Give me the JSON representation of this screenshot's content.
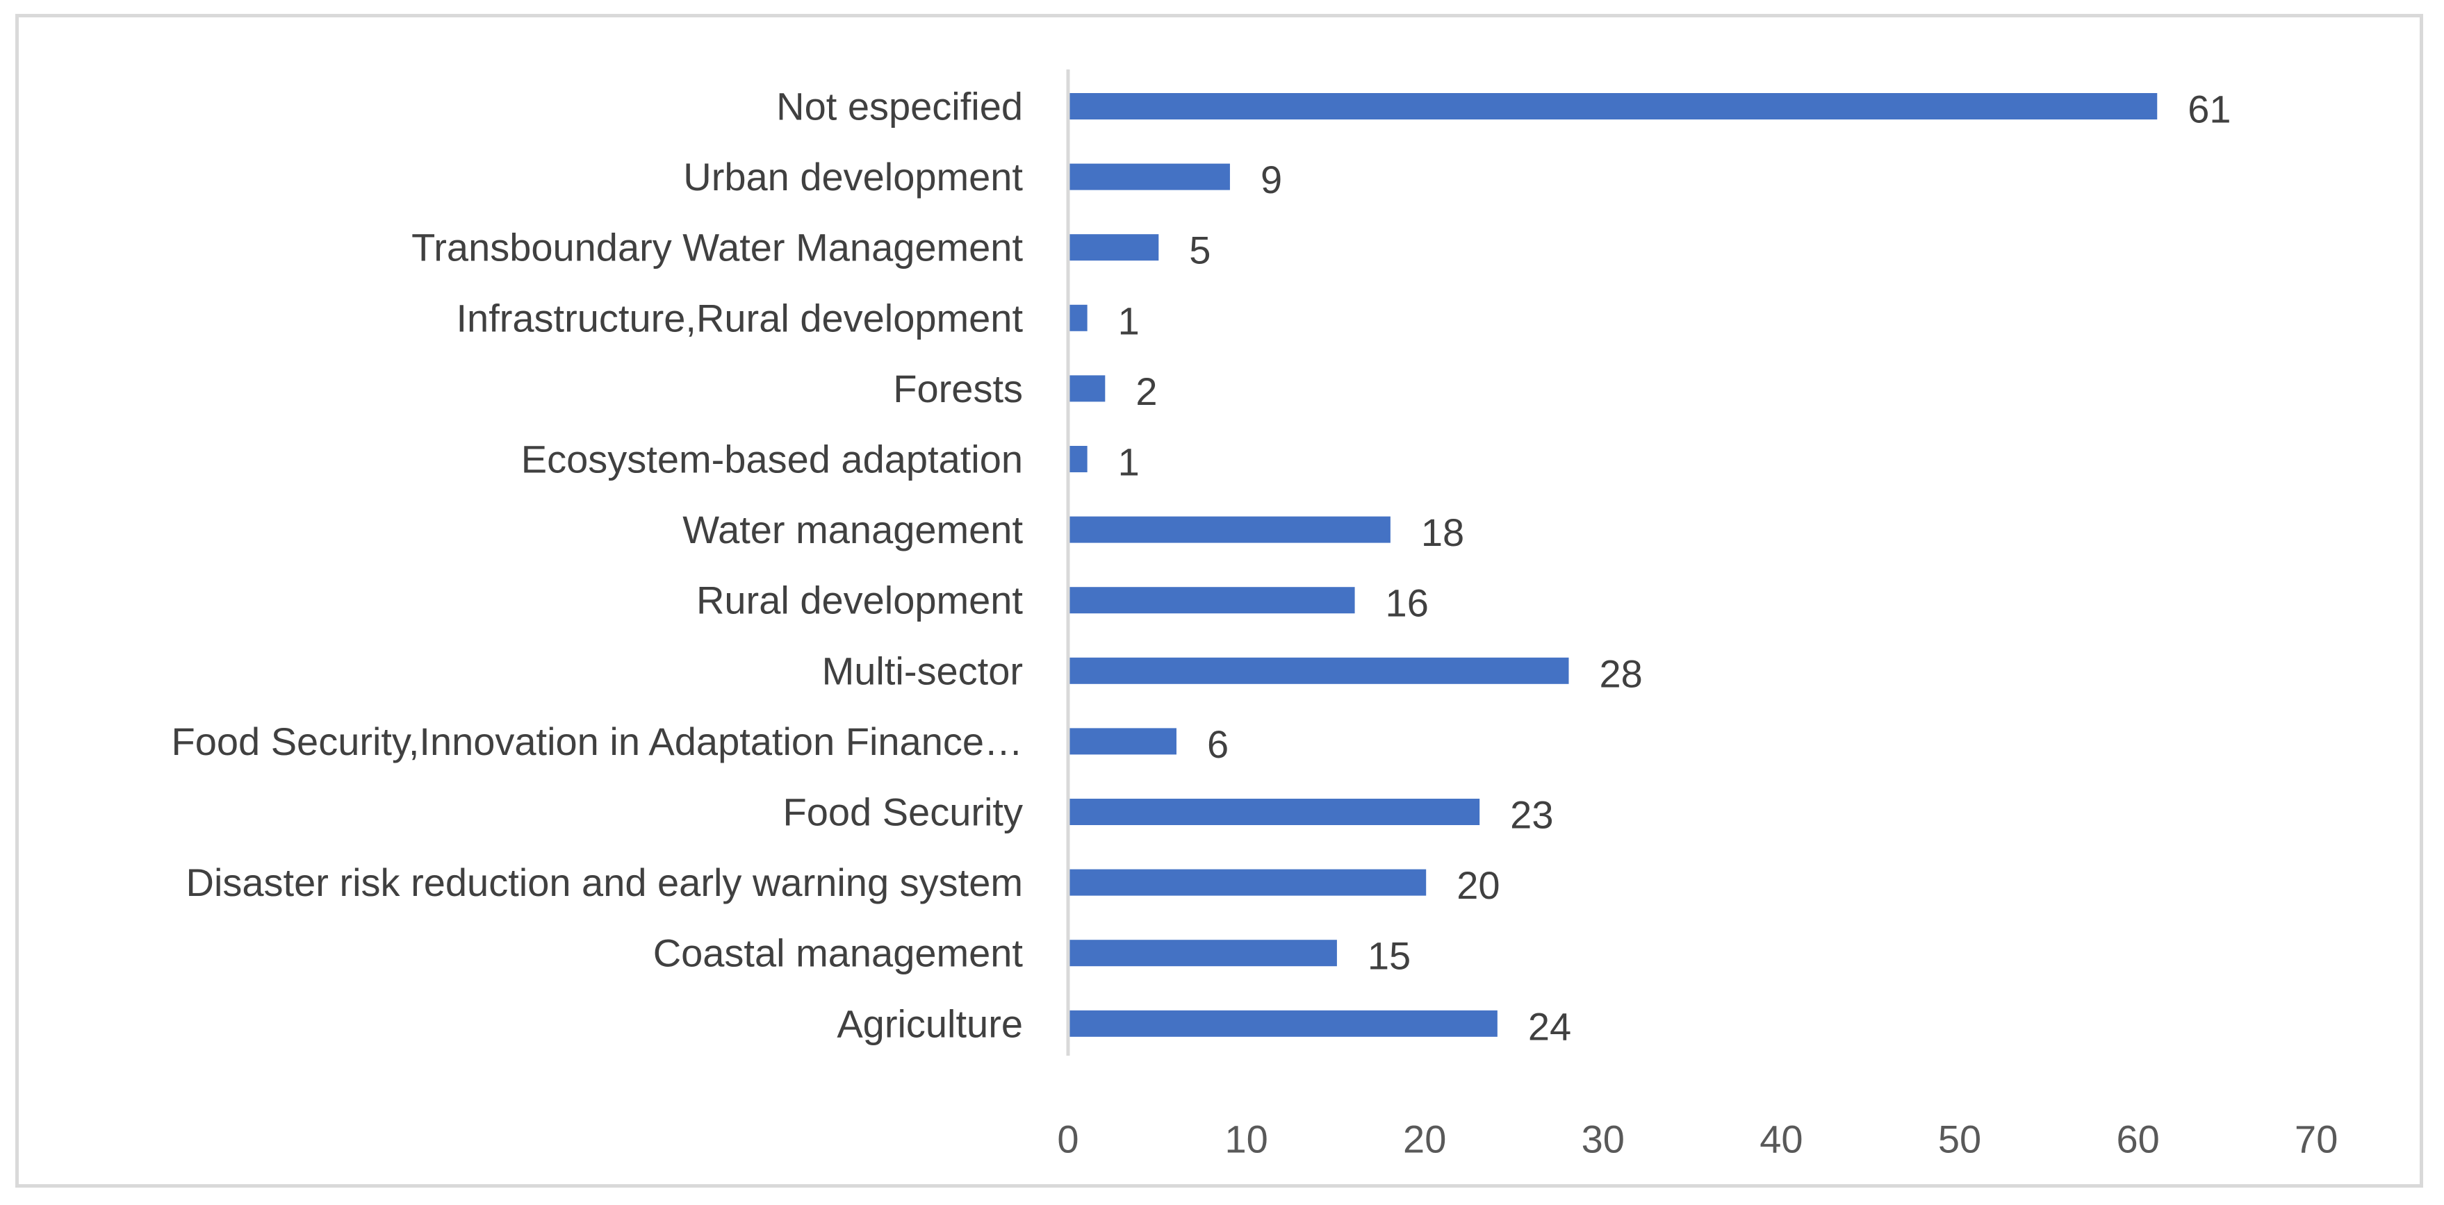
{
  "chart_data": {
    "type": "bar",
    "orientation": "horizontal",
    "title": "",
    "xlabel": "",
    "ylabel": "",
    "xlim": [
      0,
      70
    ],
    "xticks": [
      0,
      10,
      20,
      30,
      40,
      50,
      60,
      70
    ],
    "grid": false,
    "legend": "none",
    "bar_color": "#4472c4",
    "categories": [
      "Not especified",
      "Urban development",
      "Transboundary Water Management",
      "Infrastructure,Rural development",
      "Forests",
      "Ecosystem-based adaptation",
      "Water management",
      "Rural development",
      "Multi-sector",
      "Food Security,Innovation in Adaptation Finance…",
      "Food Security",
      "Disaster risk reduction and early warning system",
      "Coastal management",
      "Agriculture"
    ],
    "values": [
      61,
      9,
      5,
      1,
      2,
      1,
      18,
      16,
      28,
      6,
      23,
      20,
      15,
      24
    ]
  }
}
